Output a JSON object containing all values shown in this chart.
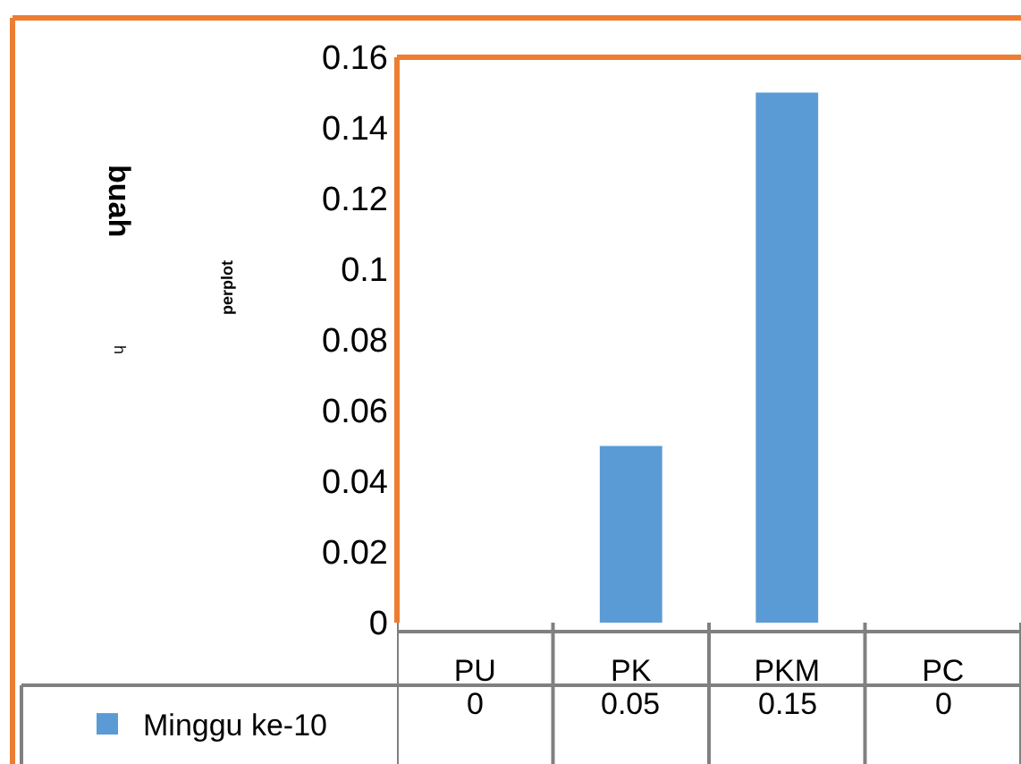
{
  "chart_data": {
    "type": "bar",
    "annotations": [
      "buah",
      "h",
      "perplot"
    ],
    "categories": [
      "PU",
      "PK",
      "PKM",
      "PC"
    ],
    "series": [
      {
        "name": "Minggu ke-10",
        "color": "#5b9bd5",
        "values": [
          0,
          0.05,
          0.15,
          0
        ]
      }
    ],
    "ylim": [
      0,
      0.16
    ],
    "yticks": [
      0,
      0.02,
      0.04,
      0.06,
      0.08,
      0.1,
      0.12,
      0.14,
      0.16
    ],
    "data_labels": true,
    "legend": "bottom left"
  }
}
